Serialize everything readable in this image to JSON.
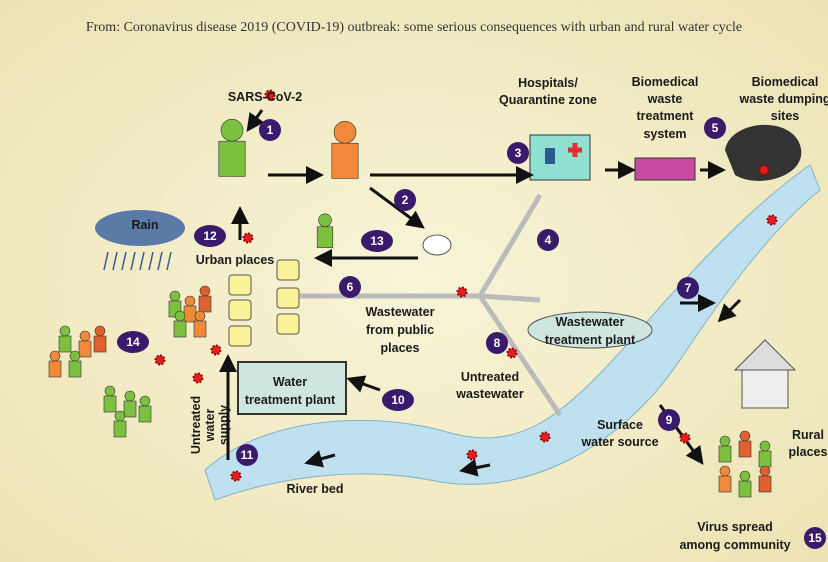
{
  "title": "From: Coronavirus disease 2019 (COVID-19) outbreak: some serious consequences with urban and rural water cycle",
  "labels": [
    {
      "lines": [
        "SARS-CoV-2"
      ]
    },
    {
      "lines": [
        "Hospitals/",
        "Quarantine zone"
      ]
    },
    {
      "lines": [
        "Biomedical",
        "waste",
        "treatment",
        "system"
      ]
    },
    {
      "lines": [
        "Biomedical",
        "waste dumping",
        "sites"
      ]
    },
    {
      "lines": [
        "Rain"
      ]
    },
    {
      "lines": [
        "Urban places"
      ]
    },
    {
      "lines": [
        "Wastewater",
        "from public",
        "places"
      ]
    },
    {
      "lines": [
        "Wastewater",
        "treatment plant"
      ]
    },
    {
      "lines": [
        "Untreated",
        "wastewater"
      ]
    },
    {
      "lines": [
        "Water",
        "treatment plant"
      ]
    },
    {
      "lines": [
        "Untreated",
        "water",
        "supply"
      ]
    },
    {
      "lines": [
        "River bed"
      ]
    },
    {
      "lines": [
        "Surface",
        "water source"
      ]
    },
    {
      "lines": [
        "Rural",
        "places"
      ]
    },
    {
      "lines": [
        "Virus spread",
        "among community"
      ]
    }
  ],
  "steps": [
    1,
    2,
    3,
    4,
    5,
    6,
    7,
    8,
    9,
    10,
    11,
    12,
    13,
    14,
    15
  ]
}
